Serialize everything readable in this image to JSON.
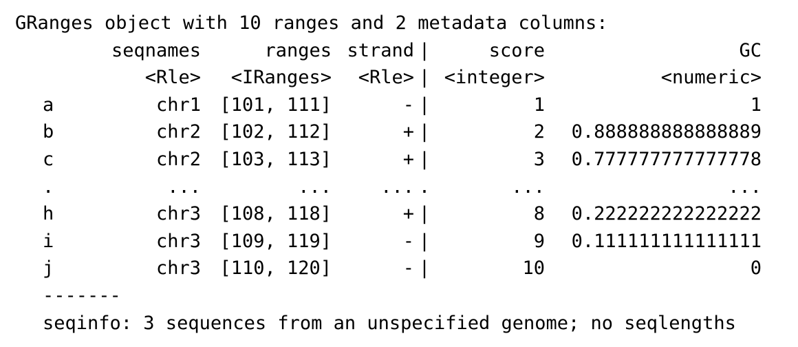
{
  "title": "GRanges object with 10 ranges and 2 metadata columns:",
  "header": {
    "name": "",
    "seqnames": "seqnames",
    "ranges": "ranges",
    "strand": "strand",
    "sep": "|",
    "score": "score",
    "gc": "GC"
  },
  "types": {
    "name": "",
    "seqnames": "<Rle>",
    "ranges": "<IRanges>",
    "strand": "<Rle>",
    "sep": "|",
    "score": "<integer>",
    "gc": "<numeric>"
  },
  "rows": [
    {
      "name": "a",
      "seqnames": "chr1",
      "ranges": "[101, 111]",
      "strand": "-",
      "sep": "|",
      "score": "1",
      "gc": "1"
    },
    {
      "name": "b",
      "seqnames": "chr2",
      "ranges": "[102, 112]",
      "strand": "+",
      "sep": "|",
      "score": "2",
      "gc": "0.888888888888889"
    },
    {
      "name": "c",
      "seqnames": "chr2",
      "ranges": "[103, 113]",
      "strand": "+",
      "sep": "|",
      "score": "3",
      "gc": "0.777777777777778"
    },
    {
      "name": ".",
      "seqnames": "...",
      "ranges": "...",
      "strand": "...",
      "sep": ".",
      "score": "...",
      "gc": "..."
    },
    {
      "name": "h",
      "seqnames": "chr3",
      "ranges": "[108, 118]",
      "strand": "+",
      "sep": "|",
      "score": "8",
      "gc": "0.222222222222222"
    },
    {
      "name": "i",
      "seqnames": "chr3",
      "ranges": "[109, 119]",
      "strand": "-",
      "sep": "|",
      "score": "9",
      "gc": "0.111111111111111"
    },
    {
      "name": "j",
      "seqnames": "chr3",
      "ranges": "[110, 120]",
      "strand": "-",
      "sep": "|",
      "score": "10",
      "gc": "0"
    }
  ],
  "separator": "-------",
  "seqinfo": "seqinfo: 3 sequences from an unspecified genome; no seqlengths"
}
